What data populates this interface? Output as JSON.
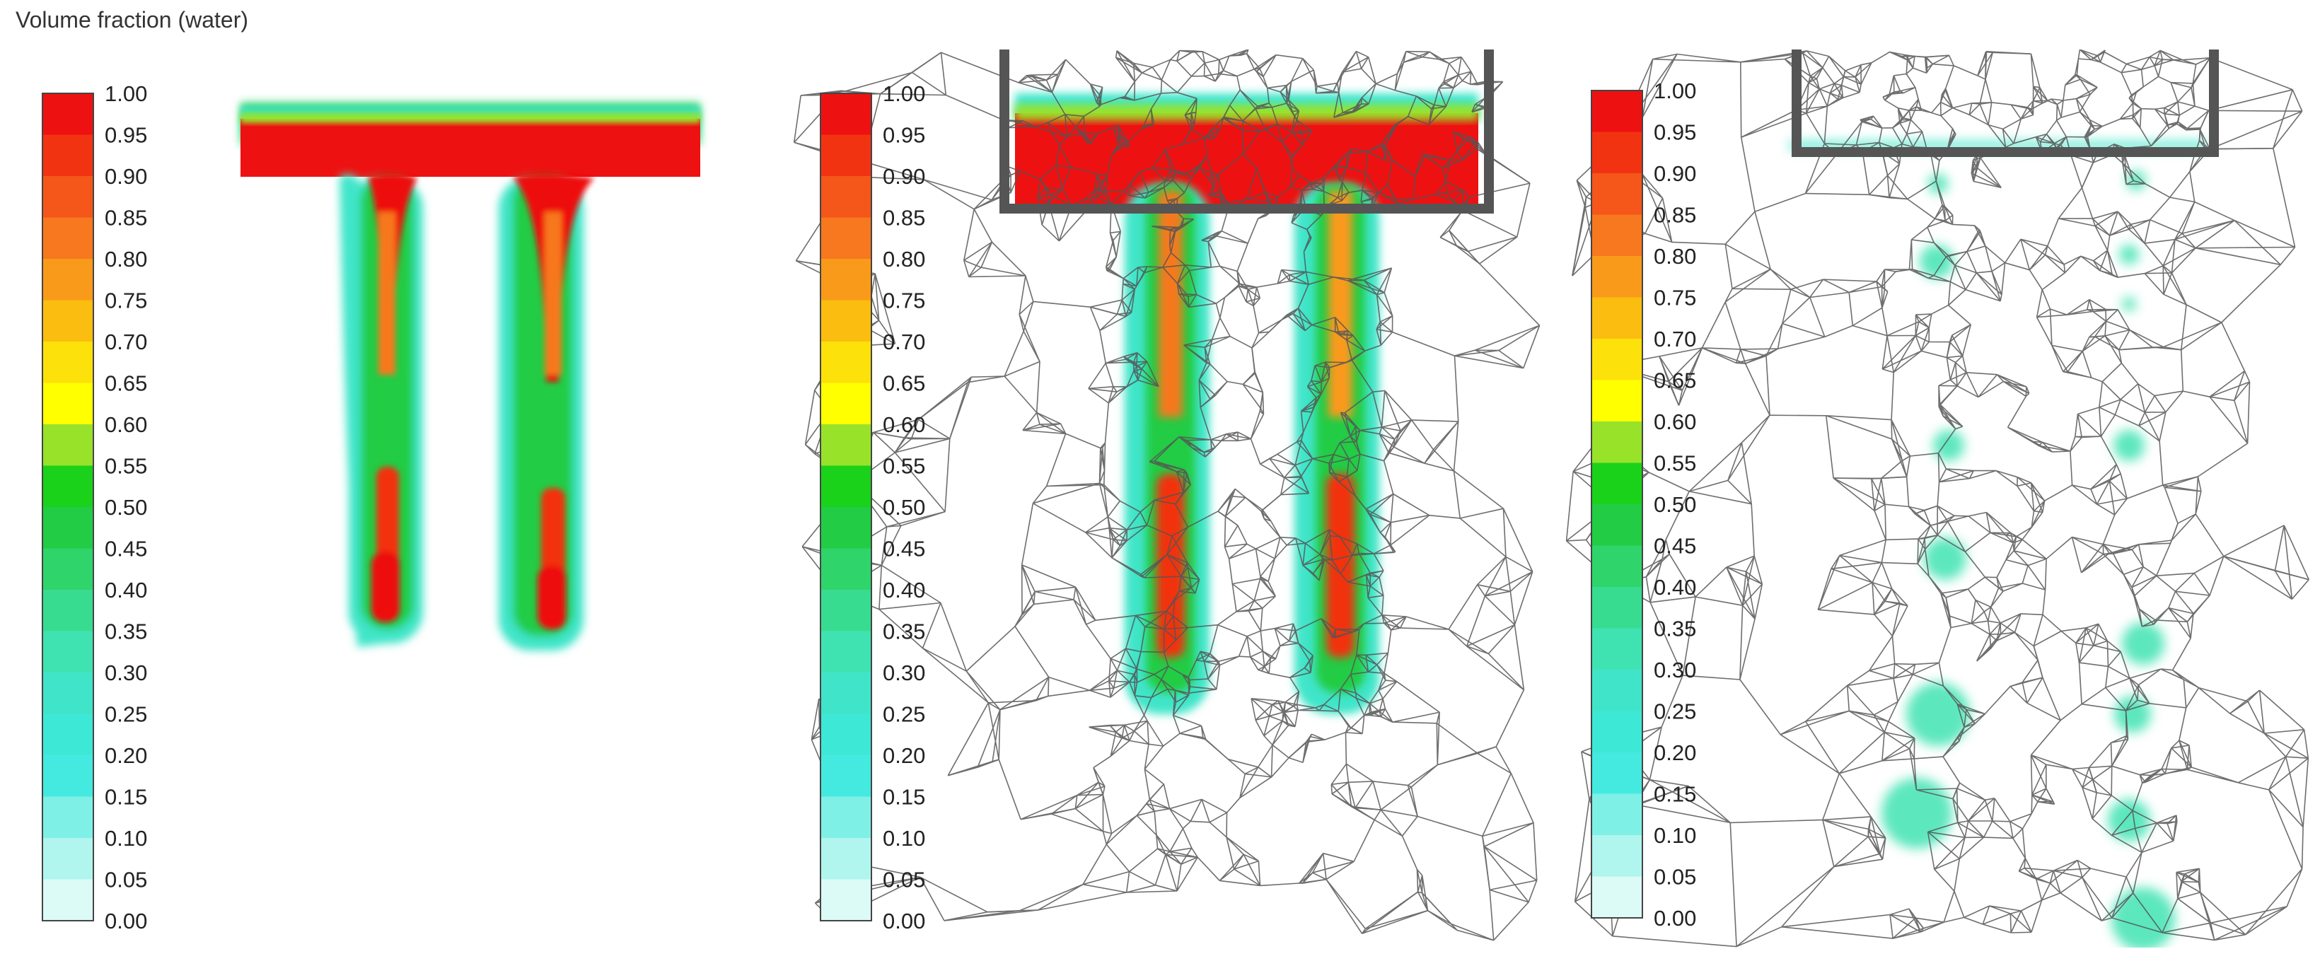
{
  "title": "Volume fraction (water)",
  "colorbar": {
    "ticks": [
      "1.00",
      "0.95",
      "0.90",
      "0.85",
      "0.80",
      "0.75",
      "0.70",
      "0.65",
      "0.60",
      "0.55",
      "0.50",
      "0.45",
      "0.40",
      "0.35",
      "0.30",
      "0.25",
      "0.20",
      "0.15",
      "0.10",
      "0.05",
      "0.00"
    ],
    "bands": [
      "#ee1111",
      "#f23311",
      "#f5561a",
      "#f7781e",
      "#f99a1a",
      "#fbbd0f",
      "#fde10a",
      "#ffff00",
      "#99e22a",
      "#19d219",
      "#22cc44",
      "#2fd46a",
      "#38dc91",
      "#3fe3b1",
      "#40e5c9",
      "#3ee8d6",
      "#44eadf",
      "#7ff0e6",
      "#b0f5ee",
      "#dcfaf6"
    ]
  },
  "panels": [
    {
      "name": "volume-fraction-field-panel",
      "colorbar_ticks_visible": true
    },
    {
      "name": "volume-fraction-mesh-panel-1",
      "colorbar_ticks_visible": true
    },
    {
      "name": "volume-fraction-mesh-panel-2",
      "colorbar_ticks_visible": true
    }
  ]
}
